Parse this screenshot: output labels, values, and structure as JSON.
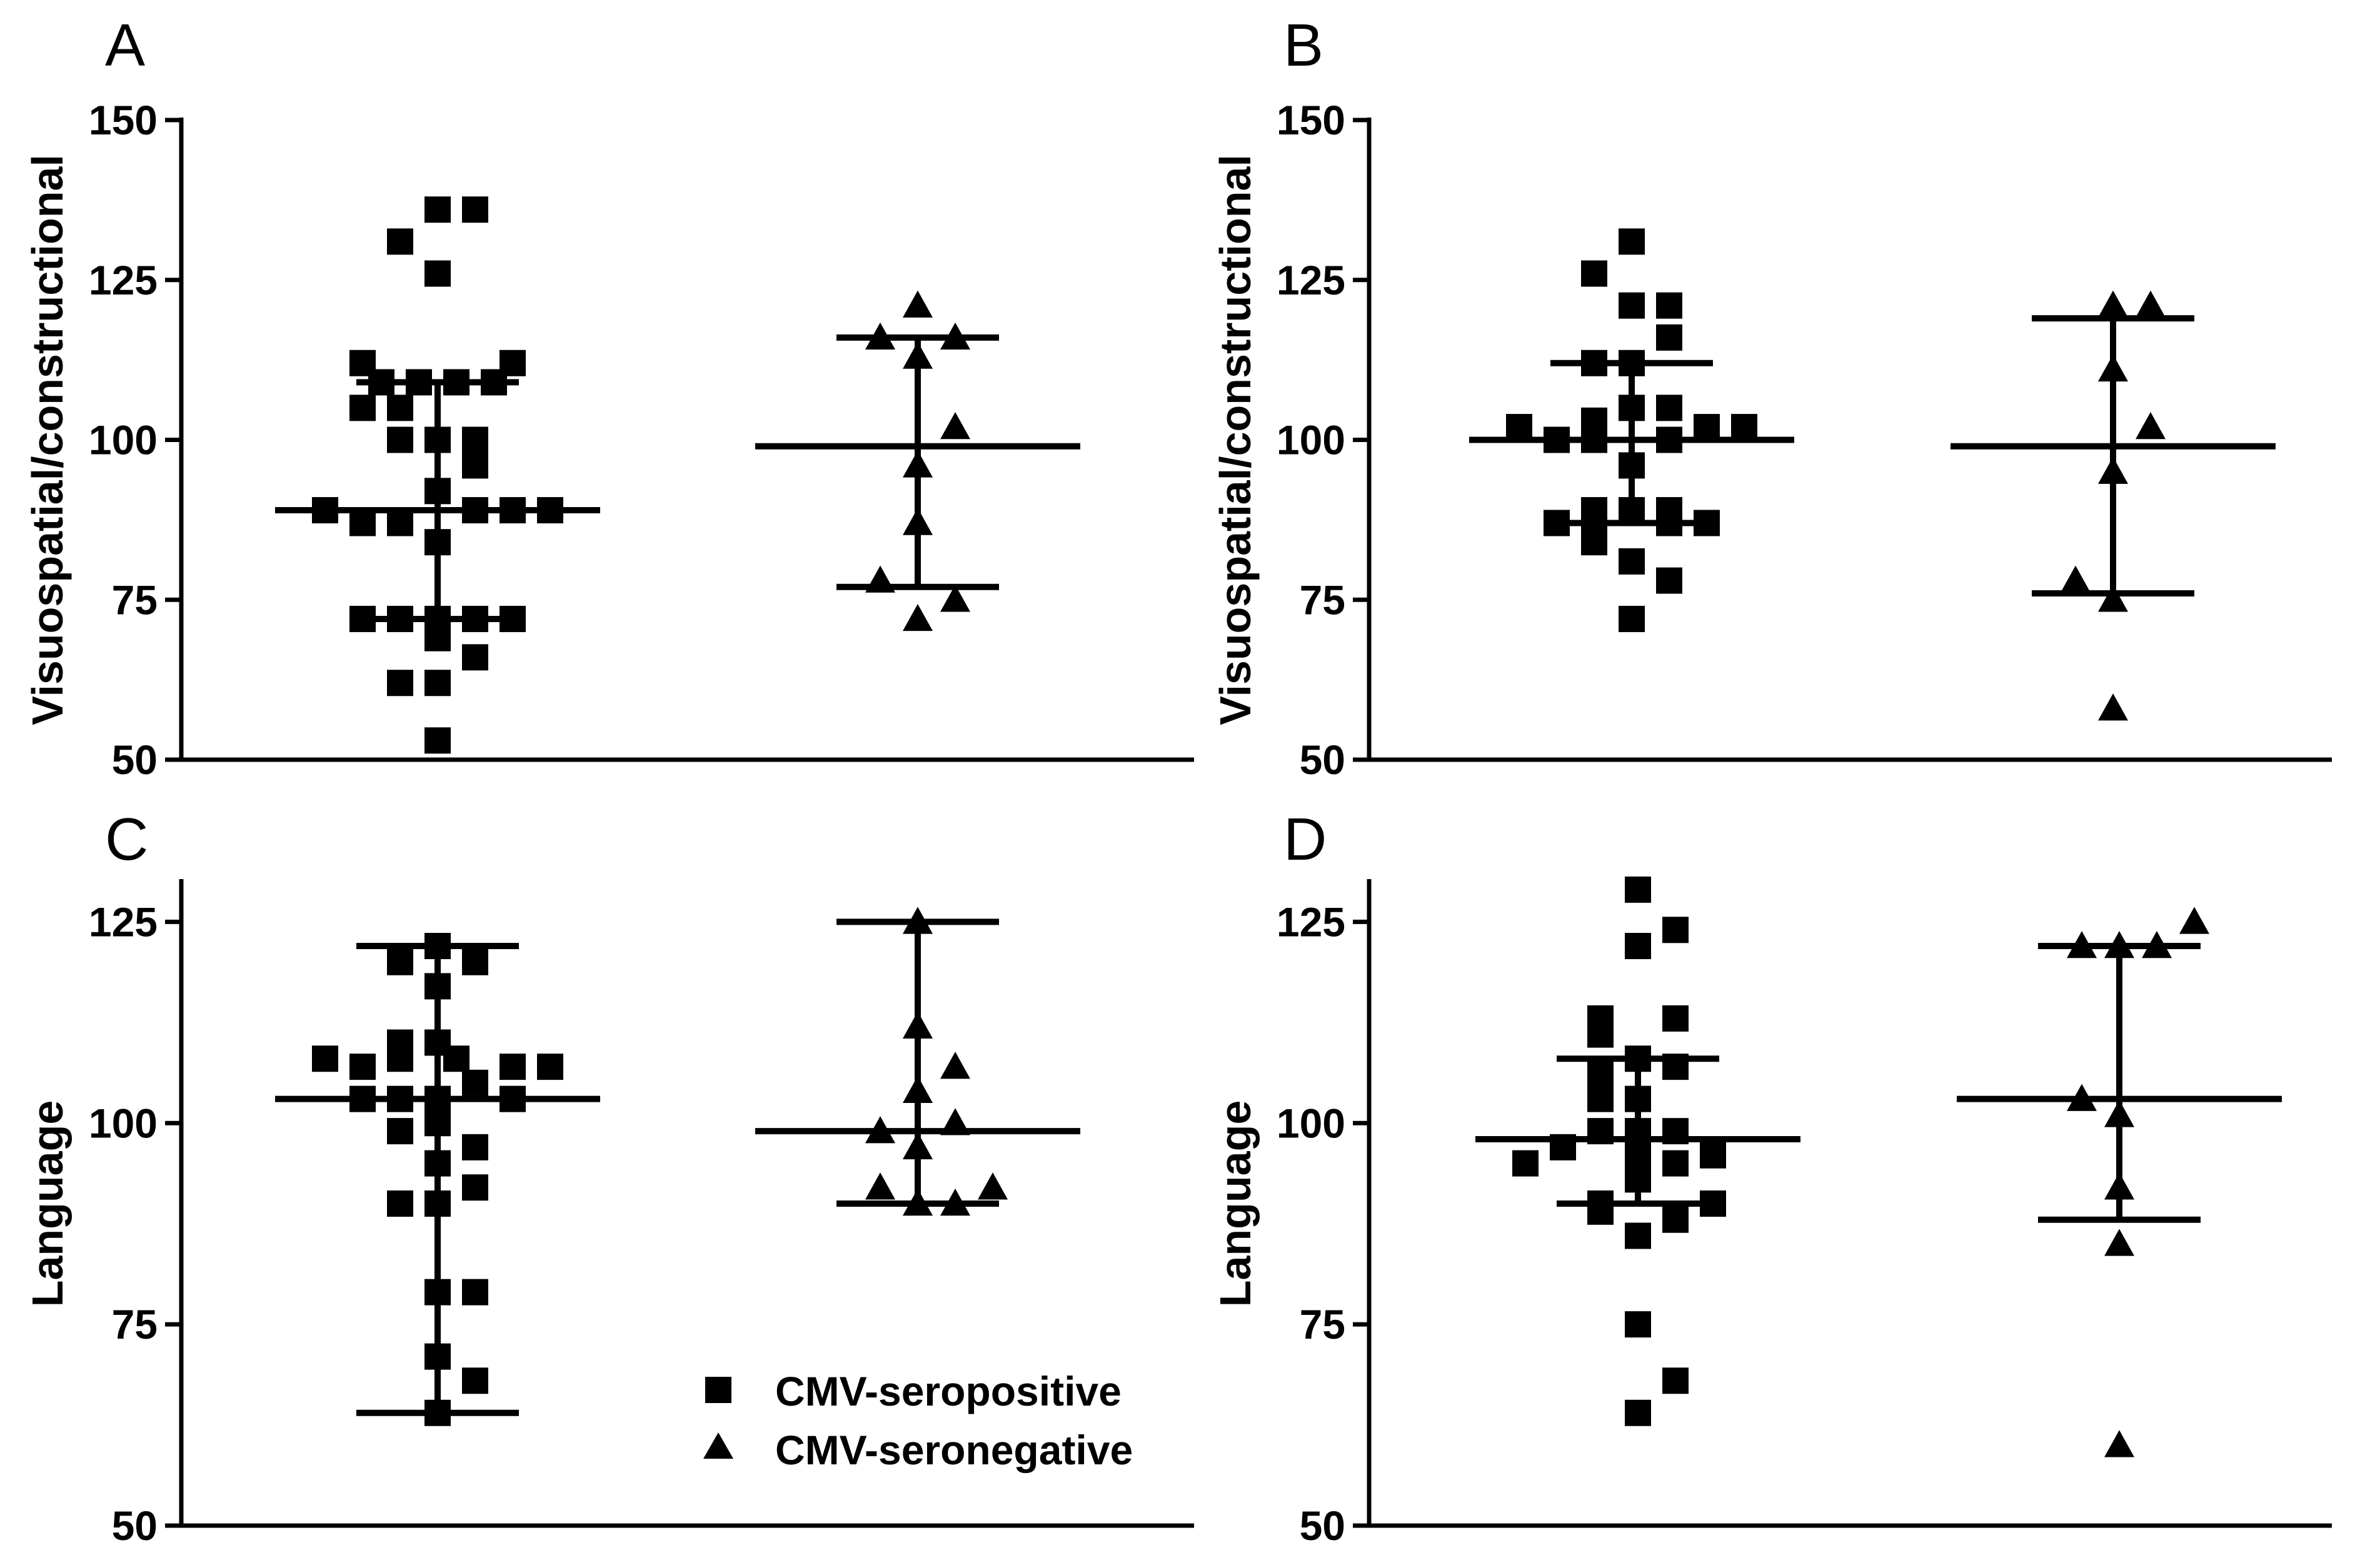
{
  "legend": {
    "items": [
      {
        "label": "CMV-seropositive",
        "marker": "square"
      },
      {
        "label": "CMV-seronegative",
        "marker": "triangle"
      }
    ],
    "placement": "inside panel C, lower-right"
  },
  "chart_data": [
    {
      "panel": "A",
      "type": "scatter",
      "ylabel": "Visuospatial/constructional",
      "ylim": [
        50,
        150
      ],
      "yticks": [
        50,
        75,
        100,
        125,
        150
      ],
      "groups": [
        {
          "name": "CMV-seropositive",
          "marker": "square",
          "median": 89,
          "q1": 72,
          "q3": 109,
          "points": [
            {
              "dx": 0,
              "y": 136
            },
            {
              "dx": 1,
              "y": 136
            },
            {
              "dx": -1,
              "y": 131
            },
            {
              "dx": 0,
              "y": 126
            },
            {
              "dx": -2,
              "y": 112
            },
            {
              "dx": 2,
              "y": 112
            },
            {
              "dx": -1.5,
              "y": 109
            },
            {
              "dx": -0.5,
              "y": 109
            },
            {
              "dx": 0.5,
              "y": 109
            },
            {
              "dx": 1.5,
              "y": 109
            },
            {
              "dx": -2,
              "y": 105
            },
            {
              "dx": -1,
              "y": 105
            },
            {
              "dx": -1,
              "y": 100
            },
            {
              "dx": 0,
              "y": 100
            },
            {
              "dx": 1,
              "y": 100
            },
            {
              "dx": 1,
              "y": 96
            },
            {
              "dx": 0,
              "y": 92
            },
            {
              "dx": -3,
              "y": 89
            },
            {
              "dx": 1,
              "y": 89
            },
            {
              "dx": 2,
              "y": 89
            },
            {
              "dx": 3,
              "y": 89
            },
            {
              "dx": -2,
              "y": 87
            },
            {
              "dx": -1,
              "y": 87
            },
            {
              "dx": 0,
              "y": 84
            },
            {
              "dx": -2,
              "y": 72
            },
            {
              "dx": -1,
              "y": 72
            },
            {
              "dx": 0,
              "y": 72
            },
            {
              "dx": 1,
              "y": 72
            },
            {
              "dx": 2,
              "y": 72
            },
            {
              "dx": 0,
              "y": 69
            },
            {
              "dx": 1,
              "y": 66
            },
            {
              "dx": -1,
              "y": 62
            },
            {
              "dx": 0,
              "y": 62
            },
            {
              "dx": 0,
              "y": 53
            }
          ]
        },
        {
          "name": "CMV-seronegative",
          "marker": "triangle",
          "median": 99,
          "q1": 77,
          "q3": 116,
          "points": [
            {
              "dx": 0,
              "y": 121
            },
            {
              "dx": -1,
              "y": 116
            },
            {
              "dx": 1,
              "y": 116
            },
            {
              "dx": 0,
              "y": 113
            },
            {
              "dx": 1,
              "y": 102
            },
            {
              "dx": 0,
              "y": 96
            },
            {
              "dx": 0,
              "y": 87
            },
            {
              "dx": -1,
              "y": 78
            },
            {
              "dx": 1,
              "y": 75
            },
            {
              "dx": 0,
              "y": 72
            }
          ]
        }
      ]
    },
    {
      "panel": "B",
      "type": "scatter",
      "ylabel": "Visuospatial/constructional",
      "ylim": [
        50,
        150
      ],
      "yticks": [
        50,
        75,
        100,
        125,
        150
      ],
      "groups": [
        {
          "name": "CMV-seropositive",
          "marker": "square",
          "median": 100,
          "q1": 87,
          "q3": 112,
          "points": [
            {
              "dx": 0,
              "y": 131
            },
            {
              "dx": -1,
              "y": 126
            },
            {
              "dx": 0,
              "y": 121
            },
            {
              "dx": 1,
              "y": 121
            },
            {
              "dx": 1,
              "y": 116
            },
            {
              "dx": -1,
              "y": 112
            },
            {
              "dx": 0,
              "y": 112
            },
            {
              "dx": 0,
              "y": 105
            },
            {
              "dx": 1,
              "y": 105
            },
            {
              "dx": -1,
              "y": 103
            },
            {
              "dx": -3,
              "y": 102
            },
            {
              "dx": 2,
              "y": 102
            },
            {
              "dx": 3,
              "y": 102
            },
            {
              "dx": -2,
              "y": 100
            },
            {
              "dx": -1,
              "y": 100
            },
            {
              "dx": 1,
              "y": 100
            },
            {
              "dx": 0,
              "y": 96
            },
            {
              "dx": -1,
              "y": 89
            },
            {
              "dx": 0,
              "y": 89
            },
            {
              "dx": 1,
              "y": 89
            },
            {
              "dx": -2,
              "y": 87
            },
            {
              "dx": -1,
              "y": 87
            },
            {
              "dx": 1,
              "y": 87
            },
            {
              "dx": 2,
              "y": 87
            },
            {
              "dx": -1,
              "y": 84
            },
            {
              "dx": 0,
              "y": 81
            },
            {
              "dx": 1,
              "y": 78
            },
            {
              "dx": 0,
              "y": 72
            }
          ]
        },
        {
          "name": "CMV-seronegative",
          "marker": "triangle",
          "median": 99,
          "q1": 76,
          "q3": 119,
          "points": [
            {
              "dx": 0,
              "y": 121
            },
            {
              "dx": 1,
              "y": 121
            },
            {
              "dx": 0,
              "y": 111
            },
            {
              "dx": 1,
              "y": 102
            },
            {
              "dx": 0,
              "y": 95
            },
            {
              "dx": -1,
              "y": 78
            },
            {
              "dx": 0,
              "y": 75
            },
            {
              "dx": 0,
              "y": 58
            }
          ]
        }
      ]
    },
    {
      "panel": "C",
      "type": "scatter",
      "ylabel": "Language",
      "ylim": [
        50,
        130
      ],
      "yticks": [
        50,
        75,
        100,
        125
      ],
      "groups": [
        {
          "name": "CMV-seropositive",
          "marker": "square",
          "median": 103,
          "q1": 64,
          "q3": 122,
          "points": [
            {
              "dx": 0,
              "y": 122
            },
            {
              "dx": -1,
              "y": 120
            },
            {
              "dx": 1,
              "y": 120
            },
            {
              "dx": 0,
              "y": 117
            },
            {
              "dx": -1,
              "y": 110
            },
            {
              "dx": 0,
              "y": 110
            },
            {
              "dx": 0.5,
              "y": 108
            },
            {
              "dx": -3,
              "y": 108
            },
            {
              "dx": -1,
              "y": 108
            },
            {
              "dx": -2,
              "y": 107
            },
            {
              "dx": 2,
              "y": 107
            },
            {
              "dx": 3,
              "y": 107
            },
            {
              "dx": 1,
              "y": 105
            },
            {
              "dx": -2,
              "y": 103
            },
            {
              "dx": -1,
              "y": 103
            },
            {
              "dx": 0,
              "y": 103
            },
            {
              "dx": 2,
              "y": 103
            },
            {
              "dx": -1,
              "y": 99
            },
            {
              "dx": 0,
              "y": 100
            },
            {
              "dx": 1,
              "y": 97
            },
            {
              "dx": 0,
              "y": 95
            },
            {
              "dx": 1,
              "y": 92
            },
            {
              "dx": -1,
              "y": 90
            },
            {
              "dx": 0,
              "y": 90
            },
            {
              "dx": 0,
              "y": 79
            },
            {
              "dx": 1,
              "y": 79
            },
            {
              "dx": 0,
              "y": 71
            },
            {
              "dx": 1,
              "y": 68
            },
            {
              "dx": 0,
              "y": 64
            }
          ]
        },
        {
          "name": "CMV-seronegative",
          "marker": "triangle",
          "median": 99,
          "q1": 90,
          "q3": 125,
          "points": [
            {
              "dx": 0,
              "y": 125
            },
            {
              "dx": 0,
              "y": 112
            },
            {
              "dx": 1,
              "y": 107
            },
            {
              "dx": 0,
              "y": 104
            },
            {
              "dx": 1,
              "y": 100
            },
            {
              "dx": -1,
              "y": 99
            },
            {
              "dx": 0,
              "y": 97
            },
            {
              "dx": -1,
              "y": 92
            },
            {
              "dx": 2,
              "y": 92
            },
            {
              "dx": 0,
              "y": 90
            },
            {
              "dx": 1,
              "y": 90
            }
          ]
        }
      ]
    },
    {
      "panel": "D",
      "type": "scatter",
      "ylabel": "Language",
      "ylim": [
        50,
        130
      ],
      "yticks": [
        50,
        75,
        100,
        125
      ],
      "groups": [
        {
          "name": "CMV-seropositive",
          "marker": "square",
          "median": 98,
          "q1": 90,
          "q3": 108,
          "points": [
            {
              "dx": 0,
              "y": 129
            },
            {
              "dx": 1,
              "y": 124
            },
            {
              "dx": 0,
              "y": 122
            },
            {
              "dx": -1,
              "y": 113
            },
            {
              "dx": 1,
              "y": 113
            },
            {
              "dx": -1,
              "y": 111
            },
            {
              "dx": 0,
              "y": 108
            },
            {
              "dx": 1,
              "y": 107
            },
            {
              "dx": -1,
              "y": 106
            },
            {
              "dx": -1,
              "y": 103
            },
            {
              "dx": 0,
              "y": 103
            },
            {
              "dx": -1,
              "y": 99
            },
            {
              "dx": 0,
              "y": 99
            },
            {
              "dx": 1,
              "y": 99
            },
            {
              "dx": -2,
              "y": 97
            },
            {
              "dx": 0,
              "y": 96
            },
            {
              "dx": 2,
              "y": 96
            },
            {
              "dx": -3,
              "y": 95
            },
            {
              "dx": 1,
              "y": 95
            },
            {
              "dx": 0,
              "y": 93
            },
            {
              "dx": -1,
              "y": 90
            },
            {
              "dx": 2,
              "y": 90
            },
            {
              "dx": -1,
              "y": 89
            },
            {
              "dx": 1,
              "y": 88
            },
            {
              "dx": 0,
              "y": 86
            },
            {
              "dx": 0,
              "y": 75
            },
            {
              "dx": 1,
              "y": 68
            },
            {
              "dx": 0,
              "y": 64
            }
          ]
        },
        {
          "name": "CMV-seronegative",
          "marker": "triangle",
          "median": 103,
          "q1": 88,
          "q3": 122,
          "points": [
            {
              "dx": -1,
              "y": 122
            },
            {
              "dx": 0,
              "y": 122
            },
            {
              "dx": 1,
              "y": 122
            },
            {
              "dx": 2,
              "y": 125
            },
            {
              "dx": -1,
              "y": 103
            },
            {
              "dx": 0,
              "y": 101
            },
            {
              "dx": 0,
              "y": 92
            },
            {
              "dx": 0,
              "y": 85
            },
            {
              "dx": 0,
              "y": 60
            }
          ]
        }
      ]
    }
  ]
}
